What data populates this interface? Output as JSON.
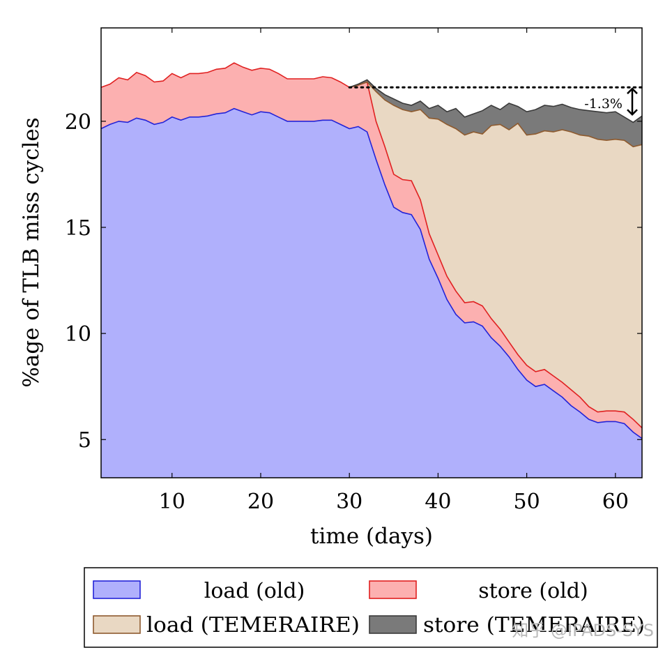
{
  "chart_data": {
    "type": "area",
    "title": "",
    "xlabel": "time (days)",
    "ylabel": "%age of TLB miss cycles",
    "xlim": [
      2,
      63
    ],
    "ylim": [
      3.2,
      24.4
    ],
    "xticks": [
      10,
      20,
      30,
      40,
      50,
      60
    ],
    "yticks": [
      5,
      10,
      15,
      20
    ],
    "grid": false,
    "legend_position": "below",
    "series": [
      {
        "name": "load (old)",
        "fill": "#b0b0fc",
        "stroke": "#2323d8",
        "x": [
          2,
          3,
          4,
          5,
          6,
          7,
          8,
          9,
          10,
          11,
          12,
          13,
          14,
          15,
          16,
          17,
          18,
          19,
          20,
          21,
          22,
          23,
          24,
          25,
          26,
          27,
          28,
          29,
          30,
          31,
          32,
          33,
          34,
          35,
          36,
          37,
          38,
          39,
          40,
          41,
          42,
          43,
          44,
          45,
          46,
          47,
          48,
          49,
          50,
          51,
          52,
          53,
          54,
          55,
          56,
          57,
          58,
          59,
          60,
          61,
          62,
          63
        ],
        "values": [
          19.65,
          19.85,
          20.0,
          19.95,
          20.15,
          20.05,
          19.85,
          19.95,
          20.2,
          20.05,
          20.2,
          20.2,
          20.25,
          20.35,
          20.4,
          20.6,
          20.45,
          20.3,
          20.45,
          20.4,
          20.2,
          20.0,
          20.0,
          20.0,
          20.0,
          20.05,
          20.05,
          19.85,
          19.65,
          19.75,
          19.5,
          18.2,
          17.0,
          15.95,
          15.7,
          15.6,
          14.9,
          13.5,
          12.6,
          11.6,
          10.9,
          10.5,
          10.55,
          10.35,
          9.8,
          9.4,
          8.9,
          8.3,
          7.8,
          7.5,
          7.6,
          7.3,
          7.0,
          6.6,
          6.3,
          5.95,
          5.8,
          5.85,
          5.85,
          5.75,
          5.35,
          5.05
        ]
      },
      {
        "name": "store (old)",
        "fill": "#fcb0b0",
        "stroke": "#e02020",
        "x": [
          2,
          3,
          4,
          5,
          6,
          7,
          8,
          9,
          10,
          11,
          12,
          13,
          14,
          15,
          16,
          17,
          18,
          19,
          20,
          21,
          22,
          23,
          24,
          25,
          26,
          27,
          28,
          29,
          30,
          31,
          32,
          33,
          34,
          35,
          36,
          37,
          38,
          39,
          40,
          41,
          42,
          43,
          44,
          45,
          46,
          47,
          48,
          49,
          50,
          51,
          52,
          53,
          54,
          55,
          56,
          57,
          58,
          59,
          60,
          61,
          62,
          63
        ],
        "values": [
          21.6,
          21.75,
          22.05,
          21.95,
          22.3,
          22.15,
          21.85,
          21.9,
          22.25,
          22.05,
          22.25,
          22.25,
          22.3,
          22.45,
          22.5,
          22.75,
          22.55,
          22.4,
          22.5,
          22.45,
          22.25,
          22.0,
          22.0,
          22.0,
          22.0,
          22.1,
          22.05,
          21.85,
          21.6,
          21.7,
          21.85,
          20.0,
          18.8,
          17.5,
          17.25,
          17.2,
          16.3,
          14.7,
          13.7,
          12.7,
          12.0,
          11.45,
          11.5,
          11.3,
          10.7,
          10.2,
          9.6,
          9.0,
          8.5,
          8.2,
          8.3,
          8.0,
          7.7,
          7.35,
          7.0,
          6.55,
          6.3,
          6.35,
          6.35,
          6.3,
          5.95,
          5.55
        ]
      },
      {
        "name": "load (TEMERAIRE)",
        "fill": "#e9d8c3",
        "stroke": "#8e5a2e",
        "x": [
          30,
          31,
          32,
          33,
          34,
          35,
          36,
          37,
          38,
          39,
          40,
          41,
          42,
          43,
          44,
          45,
          46,
          47,
          48,
          49,
          50,
          51,
          52,
          53,
          54,
          55,
          56,
          57,
          58,
          59,
          60,
          61,
          62,
          63
        ],
        "values": [
          21.6,
          21.7,
          21.85,
          21.4,
          21.0,
          20.75,
          20.55,
          20.45,
          20.55,
          20.15,
          20.1,
          19.85,
          19.65,
          19.35,
          19.5,
          19.4,
          19.8,
          19.85,
          19.6,
          19.9,
          19.35,
          19.4,
          19.55,
          19.5,
          19.6,
          19.5,
          19.35,
          19.3,
          19.15,
          19.1,
          19.15,
          19.1,
          18.8,
          18.9
        ]
      },
      {
        "name": "store (TEMERAIRE)",
        "fill": "#7a7a7a",
        "stroke": "#3a3a3a",
        "x": [
          30,
          31,
          32,
          33,
          34,
          35,
          36,
          37,
          38,
          39,
          40,
          41,
          42,
          43,
          44,
          45,
          46,
          47,
          48,
          49,
          50,
          51,
          52,
          53,
          54,
          55,
          56,
          57,
          58,
          59,
          60,
          61,
          62,
          63
        ],
        "values": [
          21.6,
          21.75,
          21.95,
          21.55,
          21.25,
          21.05,
          20.85,
          20.75,
          20.95,
          20.6,
          20.75,
          20.45,
          20.6,
          20.2,
          20.35,
          20.5,
          20.75,
          20.55,
          20.85,
          20.7,
          20.45,
          20.55,
          20.75,
          20.7,
          20.8,
          20.65,
          20.55,
          20.5,
          20.45,
          20.4,
          20.45,
          20.2,
          19.95,
          20.25
        ]
      }
    ],
    "annotation": {
      "text": "-1.3%",
      "reference_y": 21.6,
      "reference_x_start": 30,
      "target_y": 20.25
    },
    "watermark": "知乎 @IPADS-SYS"
  }
}
